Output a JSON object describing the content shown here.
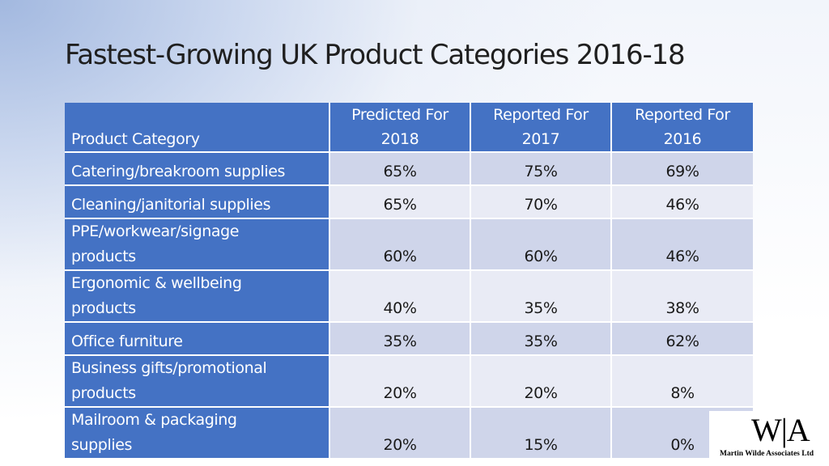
{
  "title": "Fastest-Growing UK Product Categories 2016-18",
  "table": {
    "headers": [
      {
        "line1": "",
        "line2": "Product Category"
      },
      {
        "line1": "Predicted For",
        "line2": "2018"
      },
      {
        "line1": "Reported For",
        "line2": "2017"
      },
      {
        "line1": "Reported For",
        "line2": "2016"
      }
    ],
    "rows": [
      {
        "category": [
          "Catering/breakroom supplies"
        ],
        "values": [
          "65%",
          "75%",
          "69%"
        ]
      },
      {
        "category": [
          "Cleaning/janitorial supplies"
        ],
        "values": [
          "65%",
          "70%",
          "46%"
        ]
      },
      {
        "category": [
          "PPE/workwear/signage",
          "products"
        ],
        "values": [
          "60%",
          "60%",
          "46%"
        ]
      },
      {
        "category": [
          "Ergonomic & wellbeing",
          "products"
        ],
        "values": [
          "40%",
          "35%",
          "38%"
        ]
      },
      {
        "category": [
          "Office furniture"
        ],
        "values": [
          "35%",
          "35%",
          "62%"
        ]
      },
      {
        "category": [
          "Business gifts/promotional",
          "products"
        ],
        "values": [
          "20%",
          "20%",
          "8%"
        ]
      },
      {
        "category": [
          "Mailroom & packaging",
          "supplies"
        ],
        "values": [
          "20%",
          "15%",
          "0%"
        ]
      }
    ]
  },
  "logo": {
    "mark": "W|A",
    "company": "Martin Wilde Associates Ltd"
  },
  "colors": {
    "header_blue": "#4472c4",
    "row_band_dark": "#cfd5ea",
    "row_band_light": "#e9ebf5"
  }
}
